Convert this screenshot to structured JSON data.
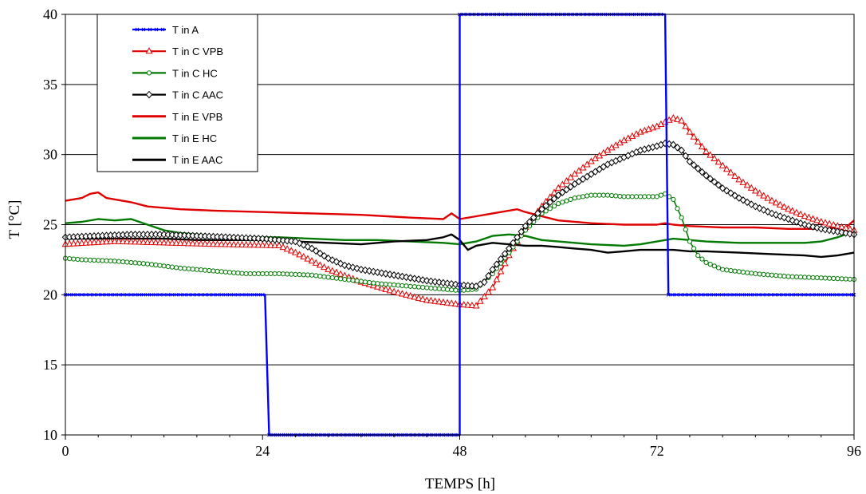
{
  "chart_data": {
    "type": "line",
    "title": "",
    "xlabel": "TEMPS [h]",
    "ylabel": "T [°C]",
    "xlim": [
      0,
      96
    ],
    "ylim": [
      10,
      40
    ],
    "x_ticks": [
      "0",
      "24",
      "48",
      "72",
      "96"
    ],
    "y_ticks": [
      "10",
      "15",
      "20",
      "25",
      "30",
      "35",
      "40"
    ],
    "grid": "horizontal",
    "legend_position": "top-left",
    "series": [
      {
        "name": "T in A",
        "color": "#0000ff",
        "marker": "x",
        "step": true,
        "points": [
          [
            0,
            20
          ],
          [
            24.3,
            20
          ],
          [
            24.8,
            10
          ],
          [
            48,
            10
          ],
          [
            48,
            40
          ],
          [
            73,
            40
          ],
          [
            73.4,
            20
          ],
          [
            96,
            20
          ]
        ]
      },
      {
        "name": "T in C VPB",
        "color": "#e00000",
        "marker": "triangle",
        "points": [
          [
            0,
            23.6
          ],
          [
            6,
            23.8
          ],
          [
            12,
            23.7
          ],
          [
            18,
            23.6
          ],
          [
            26,
            23.5
          ],
          [
            28,
            23.0
          ],
          [
            32,
            21.8
          ],
          [
            36,
            20.9
          ],
          [
            40,
            20.2
          ],
          [
            44,
            19.6
          ],
          [
            48,
            19.3
          ],
          [
            50,
            19.2
          ],
          [
            52,
            20.5
          ],
          [
            54,
            22.8
          ],
          [
            56,
            24.8
          ],
          [
            58,
            26.3
          ],
          [
            60,
            27.6
          ],
          [
            62,
            28.6
          ],
          [
            64,
            29.5
          ],
          [
            66,
            30.3
          ],
          [
            68,
            31.0
          ],
          [
            70,
            31.6
          ],
          [
            72,
            32.0
          ],
          [
            73,
            32.3
          ],
          [
            74,
            32.6
          ],
          [
            75,
            32.4
          ],
          [
            76,
            31.6
          ],
          [
            78,
            30.2
          ],
          [
            80,
            29.2
          ],
          [
            82,
            28.2
          ],
          [
            84,
            27.4
          ],
          [
            86,
            26.7
          ],
          [
            88,
            26.1
          ],
          [
            90,
            25.6
          ],
          [
            92,
            25.2
          ],
          [
            94,
            24.9
          ],
          [
            96,
            24.6
          ]
        ]
      },
      {
        "name": "T in C HC",
        "color": "#007a00",
        "marker": "circle",
        "points": [
          [
            0,
            22.6
          ],
          [
            2,
            22.5
          ],
          [
            6,
            22.4
          ],
          [
            10,
            22.2
          ],
          [
            14,
            21.9
          ],
          [
            18,
            21.7
          ],
          [
            22,
            21.5
          ],
          [
            26,
            21.5
          ],
          [
            30,
            21.4
          ],
          [
            34,
            21.1
          ],
          [
            38,
            20.8
          ],
          [
            42,
            20.6
          ],
          [
            46,
            20.4
          ],
          [
            48,
            20.3
          ],
          [
            50,
            20.4
          ],
          [
            52,
            21.5
          ],
          [
            54,
            23.0
          ],
          [
            56,
            24.6
          ],
          [
            58,
            25.8
          ],
          [
            60,
            26.5
          ],
          [
            62,
            26.9
          ],
          [
            64,
            27.1
          ],
          [
            66,
            27.1
          ],
          [
            68,
            27.0
          ],
          [
            70,
            27.0
          ],
          [
            72,
            27.0
          ],
          [
            73,
            27.2
          ],
          [
            74,
            26.8
          ],
          [
            75,
            25.5
          ],
          [
            76,
            23.8
          ],
          [
            77,
            22.8
          ],
          [
            78,
            22.3
          ],
          [
            80,
            21.8
          ],
          [
            84,
            21.5
          ],
          [
            88,
            21.3
          ],
          [
            92,
            21.2
          ],
          [
            96,
            21.1
          ]
        ]
      },
      {
        "name": "T in C AAC",
        "color": "#000000",
        "marker": "diamond",
        "points": [
          [
            0,
            24.1
          ],
          [
            4,
            24.2
          ],
          [
            8,
            24.3
          ],
          [
            12,
            24.3
          ],
          [
            16,
            24.2
          ],
          [
            20,
            24.1
          ],
          [
            24,
            24.0
          ],
          [
            28,
            23.8
          ],
          [
            30,
            23.3
          ],
          [
            32,
            22.6
          ],
          [
            34,
            22.1
          ],
          [
            36,
            21.8
          ],
          [
            40,
            21.4
          ],
          [
            44,
            21.0
          ],
          [
            48,
            20.7
          ],
          [
            50,
            20.6
          ],
          [
            51,
            20.9
          ],
          [
            52,
            21.8
          ],
          [
            54,
            23.3
          ],
          [
            56,
            24.9
          ],
          [
            58,
            26.1
          ],
          [
            60,
            27.1
          ],
          [
            62,
            27.9
          ],
          [
            64,
            28.6
          ],
          [
            66,
            29.3
          ],
          [
            68,
            29.8
          ],
          [
            70,
            30.3
          ],
          [
            72,
            30.6
          ],
          [
            73,
            30.8
          ],
          [
            74,
            30.7
          ],
          [
            75,
            30.3
          ],
          [
            76,
            29.5
          ],
          [
            78,
            28.5
          ],
          [
            80,
            27.6
          ],
          [
            82,
            26.9
          ],
          [
            84,
            26.3
          ],
          [
            86,
            25.8
          ],
          [
            88,
            25.4
          ],
          [
            90,
            25.0
          ],
          [
            92,
            24.7
          ],
          [
            94,
            24.5
          ],
          [
            96,
            24.3
          ]
        ]
      },
      {
        "name": "T in E VPB",
        "color": "#e00000",
        "marker": "none",
        "points": [
          [
            0,
            26.7
          ],
          [
            2,
            26.9
          ],
          [
            3,
            27.2
          ],
          [
            4,
            27.3
          ],
          [
            5,
            26.9
          ],
          [
            8,
            26.6
          ],
          [
            10,
            26.3
          ],
          [
            14,
            26.1
          ],
          [
            18,
            26.0
          ],
          [
            24,
            25.9
          ],
          [
            30,
            25.8
          ],
          [
            36,
            25.7
          ],
          [
            42,
            25.5
          ],
          [
            46,
            25.4
          ],
          [
            47,
            25.8
          ],
          [
            48,
            25.4
          ],
          [
            50,
            25.6
          ],
          [
            52,
            25.8
          ],
          [
            54,
            26.0
          ],
          [
            55,
            26.1
          ],
          [
            56,
            25.9
          ],
          [
            58,
            25.6
          ],
          [
            60,
            25.3
          ],
          [
            64,
            25.1
          ],
          [
            68,
            25.0
          ],
          [
            72,
            25.0
          ],
          [
            73,
            25.1
          ],
          [
            74,
            25.0
          ],
          [
            76,
            24.9
          ],
          [
            80,
            24.8
          ],
          [
            84,
            24.8
          ],
          [
            88,
            24.7
          ],
          [
            92,
            24.7
          ],
          [
            95,
            24.8
          ],
          [
            96,
            25.3
          ]
        ]
      },
      {
        "name": "T in E HC",
        "color": "#007a00",
        "marker": "none",
        "points": [
          [
            0,
            25.1
          ],
          [
            2,
            25.2
          ],
          [
            4,
            25.4
          ],
          [
            6,
            25.3
          ],
          [
            8,
            25.4
          ],
          [
            10,
            25.0
          ],
          [
            12,
            24.6
          ],
          [
            14,
            24.4
          ],
          [
            18,
            24.2
          ],
          [
            22,
            24.1
          ],
          [
            26,
            24.1
          ],
          [
            30,
            24.0
          ],
          [
            34,
            23.9
          ],
          [
            38,
            23.9
          ],
          [
            42,
            23.8
          ],
          [
            46,
            23.7
          ],
          [
            48,
            23.6
          ],
          [
            50,
            23.8
          ],
          [
            52,
            24.2
          ],
          [
            54,
            24.3
          ],
          [
            56,
            24.2
          ],
          [
            58,
            23.9
          ],
          [
            60,
            23.8
          ],
          [
            64,
            23.6
          ],
          [
            68,
            23.5
          ],
          [
            70,
            23.6
          ],
          [
            72,
            23.8
          ],
          [
            74,
            24.0
          ],
          [
            76,
            23.9
          ],
          [
            78,
            23.8
          ],
          [
            82,
            23.7
          ],
          [
            86,
            23.7
          ],
          [
            90,
            23.7
          ],
          [
            92,
            23.8
          ],
          [
            94,
            24.1
          ],
          [
            96,
            24.5
          ]
        ]
      },
      {
        "name": "T in E AAC",
        "color": "#000000",
        "marker": "none",
        "points": [
          [
            0,
            24.0
          ],
          [
            4,
            24.0
          ],
          [
            8,
            24.0
          ],
          [
            12,
            24.0
          ],
          [
            16,
            23.9
          ],
          [
            20,
            23.9
          ],
          [
            24,
            23.9
          ],
          [
            28,
            23.8
          ],
          [
            32,
            23.7
          ],
          [
            36,
            23.6
          ],
          [
            40,
            23.8
          ],
          [
            44,
            23.9
          ],
          [
            46,
            24.1
          ],
          [
            47,
            24.3
          ],
          [
            48,
            23.9
          ],
          [
            49,
            23.2
          ],
          [
            50,
            23.5
          ],
          [
            52,
            23.7
          ],
          [
            54,
            23.6
          ],
          [
            56,
            23.5
          ],
          [
            58,
            23.5
          ],
          [
            60,
            23.4
          ],
          [
            62,
            23.3
          ],
          [
            64,
            23.2
          ],
          [
            66,
            23.0
          ],
          [
            68,
            23.1
          ],
          [
            70,
            23.2
          ],
          [
            72,
            23.2
          ],
          [
            74,
            23.2
          ],
          [
            76,
            23.1
          ],
          [
            78,
            23.1
          ],
          [
            82,
            23.0
          ],
          [
            86,
            22.9
          ],
          [
            90,
            22.8
          ],
          [
            92,
            22.7
          ],
          [
            94,
            22.8
          ],
          [
            96,
            23.0
          ]
        ]
      }
    ]
  }
}
